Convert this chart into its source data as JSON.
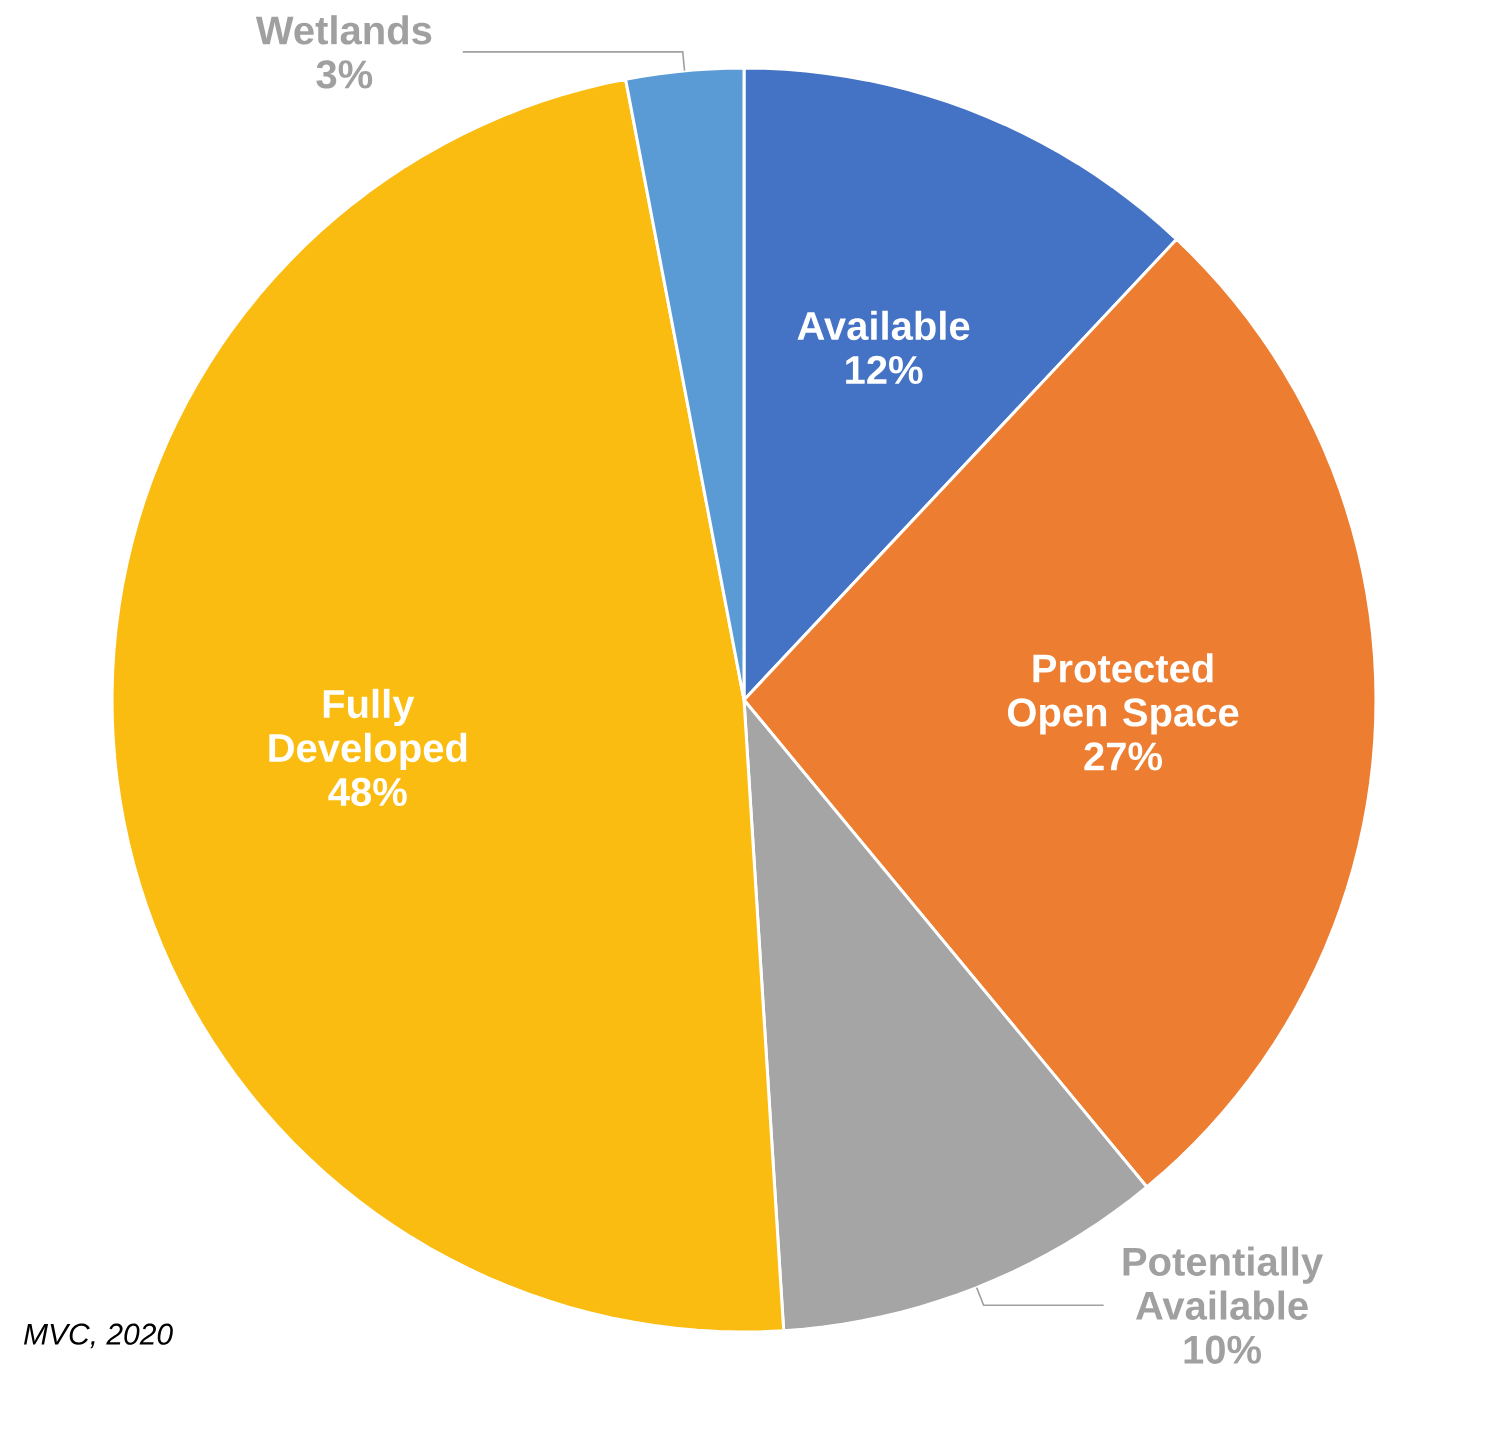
{
  "chart_data": {
    "type": "pie",
    "categories": [
      "Available",
      "Protected Open Space",
      "Potentially Available",
      "Fully Developed",
      "Wetlands"
    ],
    "values": [
      12,
      27,
      10,
      48,
      3
    ],
    "value_labels": [
      "12%",
      "27%",
      "10%",
      "48%",
      "3%"
    ],
    "colors": [
      "#4472c4",
      "#ed7d31",
      "#a5a5a5",
      "#fbbc12",
      "#5b9bd5"
    ],
    "annotations": [
      "*MVC, 2020*"
    ]
  }
}
